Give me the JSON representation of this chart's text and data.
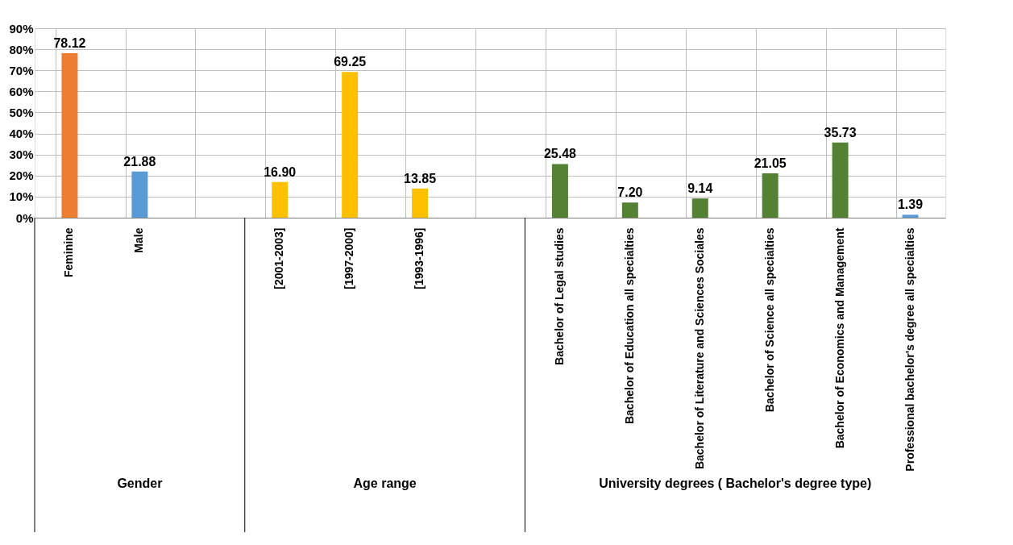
{
  "chart_data": {
    "type": "bar",
    "categories": [
      "Feminine",
      "Male",
      null,
      "[2001-2003]",
      "[1997-2000]",
      "[1993-1996]",
      null,
      "Bachelor of Legal studies",
      "Bachelor of Education all specialties",
      "Bachelor of Literature and Sciences Sociales",
      "Bachelor of Science all specialties",
      "Bachelor of Economics and Management",
      "Professional bachelor's degree all specialties"
    ],
    "values": [
      78.12,
      21.88,
      null,
      16.9,
      69.25,
      13.85,
      null,
      25.48,
      7.2,
      9.14,
      21.05,
      35.73,
      1.39
    ],
    "value_labels": [
      "78.12",
      "21.88",
      null,
      "16.90",
      "69.25",
      "13.85",
      null,
      "25.48",
      "7.20",
      "9.14",
      "21.05",
      "35.73",
      "1.39"
    ],
    "colors": [
      "#ed7d31",
      "#5b9bd5",
      "#5b9bd5",
      "#ffc000",
      "#ffc000",
      "#ffc000",
      "#ffc000",
      "#548235",
      "#548235",
      "#548235",
      "#548235",
      "#548235",
      "#5b9bd5"
    ],
    "ylim": [
      0,
      90
    ],
    "yticks": [
      {
        "value": 0,
        "label": "0%"
      },
      {
        "value": 10,
        "label": "10%"
      },
      {
        "value": 20,
        "label": "20%"
      },
      {
        "value": 30,
        "label": "30%"
      },
      {
        "value": 40,
        "label": "40%"
      },
      {
        "value": 50,
        "label": "50%"
      },
      {
        "value": 60,
        "label": "60%"
      },
      {
        "value": 70,
        "label": "70%"
      },
      {
        "value": 80,
        "label": "80%"
      },
      {
        "value": 90,
        "label": "90%"
      }
    ],
    "annotations": [
      "Gender",
      "Age range",
      "University degrees ( Bachelor's degree type)"
    ],
    "grid": true
  }
}
